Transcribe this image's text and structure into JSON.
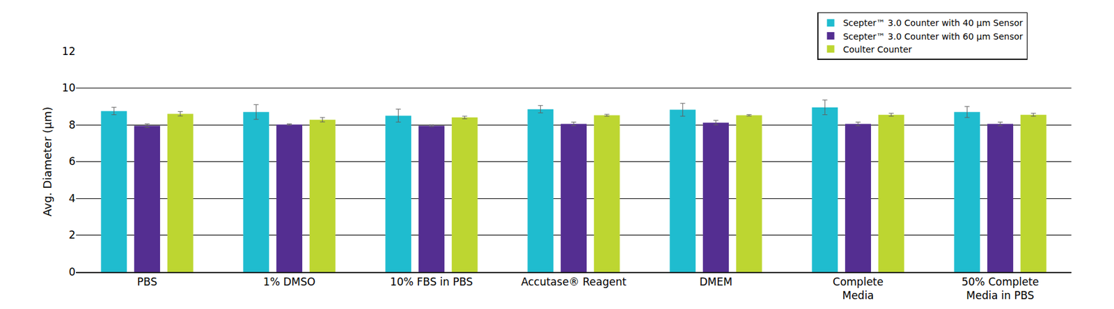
{
  "chart_data": {
    "type": "bar",
    "y_label": "Avg. Diameter (µm)",
    "categories": [
      "PBS",
      "1% DMSO",
      "10% FBS in PBS",
      "Accutase® Reagent",
      "DMEM",
      "Complete\nMedia",
      "50% Complete\nMedia in PBS"
    ],
    "series": [
      {
        "name": "Scepter™ 3.0 Counter with 40 µm Sensor",
        "color": "#1fbccf",
        "values": [
          8.75,
          8.7,
          8.5,
          8.85,
          8.82,
          8.95,
          8.7
        ],
        "error": [
          0.2,
          0.4,
          0.35,
          0.2,
          0.35,
          0.4,
          0.3
        ]
      },
      {
        "name": "Scepter™ 3.0 Counter with 60 µm Sensor",
        "color": "#542e91",
        "values": [
          7.95,
          8.02,
          7.95,
          8.05,
          8.12,
          8.05,
          8.05
        ],
        "error": [
          0.1,
          0.03,
          0.05,
          0.1,
          0.12,
          0.1,
          0.1
        ]
      },
      {
        "name": "Coulter Counter",
        "color": "#bdd631",
        "values": [
          8.6,
          8.28,
          8.4,
          8.52,
          8.52,
          8.55,
          8.55
        ],
        "error": [
          0.12,
          0.12,
          0.07,
          0.05,
          0.04,
          0.08,
          0.08
        ]
      }
    ],
    "ylim": [
      0,
      12
    ],
    "yticks": [
      0,
      2,
      4,
      6,
      8,
      10,
      12
    ],
    "grid": true,
    "legend": "top right"
  }
}
